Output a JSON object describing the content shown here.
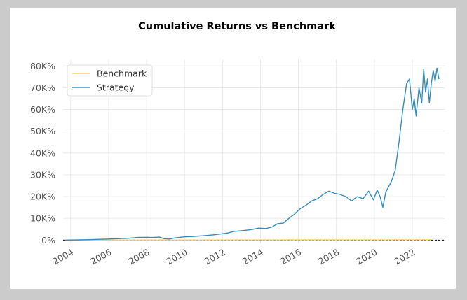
{
  "chart_data": {
    "type": "line",
    "title": "Cumulative Returns vs Benchmark",
    "xlabel": "",
    "ylabel": "",
    "x_ticks": [
      "2004",
      "2006",
      "2008",
      "2010",
      "2012",
      "2014",
      "2016",
      "2018",
      "2020",
      "2022"
    ],
    "y_ticks": [
      "0%",
      "10K%",
      "20K%",
      "30K%",
      "40K%",
      "50K%",
      "60K%",
      "70K%",
      "80K%"
    ],
    "x_range": [
      2003.6,
      2023.7
    ],
    "ylim": [
      -1500,
      83000
    ],
    "grid": true,
    "legend_position": "top-left",
    "reference_line": {
      "y": 0,
      "style": "dashed",
      "color": "#000000"
    },
    "series": [
      {
        "name": "Benchmark",
        "color": "#fcd06e",
        "points": [
          [
            2003.7,
            0
          ],
          [
            2008,
            30
          ],
          [
            2012,
            60
          ],
          [
            2016,
            100
          ],
          [
            2020,
            140
          ],
          [
            2023.0,
            180
          ]
        ]
      },
      {
        "name": "Strategy",
        "color": "#348dc1",
        "points": [
          [
            2003.7,
            0
          ],
          [
            2004.5,
            100
          ],
          [
            2005.0,
            200
          ],
          [
            2005.5,
            350
          ],
          [
            2006.0,
            500
          ],
          [
            2006.5,
            650
          ],
          [
            2007.0,
            800
          ],
          [
            2007.5,
            1200
          ],
          [
            2008.0,
            1300
          ],
          [
            2008.3,
            1200
          ],
          [
            2008.7,
            1350
          ],
          [
            2008.9,
            700
          ],
          [
            2009.2,
            500
          ],
          [
            2009.5,
            1000
          ],
          [
            2010.0,
            1500
          ],
          [
            2010.5,
            1700
          ],
          [
            2011.0,
            2000
          ],
          [
            2011.5,
            2400
          ],
          [
            2012.0,
            2900
          ],
          [
            2012.3,
            3300
          ],
          [
            2012.6,
            4000
          ],
          [
            2013.0,
            4300
          ],
          [
            2013.5,
            4800
          ],
          [
            2013.9,
            5500
          ],
          [
            2014.3,
            5300
          ],
          [
            2014.6,
            6000
          ],
          [
            2014.9,
            7500
          ],
          [
            2015.2,
            7800
          ],
          [
            2015.5,
            10000
          ],
          [
            2015.8,
            12000
          ],
          [
            2016.1,
            14500
          ],
          [
            2016.4,
            16000
          ],
          [
            2016.7,
            18000
          ],
          [
            2017.0,
            19000
          ],
          [
            2017.3,
            21000
          ],
          [
            2017.6,
            22500
          ],
          [
            2017.9,
            21500
          ],
          [
            2018.2,
            21000
          ],
          [
            2018.5,
            20000
          ],
          [
            2018.8,
            18000
          ],
          [
            2019.1,
            20000
          ],
          [
            2019.4,
            19000
          ],
          [
            2019.7,
            22500
          ],
          [
            2019.95,
            18500
          ],
          [
            2020.15,
            23000
          ],
          [
            2020.3,
            20000
          ],
          [
            2020.45,
            15000
          ],
          [
            2020.6,
            22000
          ],
          [
            2020.9,
            27000
          ],
          [
            2021.1,
            32000
          ],
          [
            2021.3,
            45000
          ],
          [
            2021.5,
            60000
          ],
          [
            2021.7,
            72000
          ],
          [
            2021.85,
            74000
          ],
          [
            2022.0,
            60000
          ],
          [
            2022.1,
            65000
          ],
          [
            2022.2,
            57000
          ],
          [
            2022.35,
            70000
          ],
          [
            2022.5,
            63000
          ],
          [
            2022.6,
            78500
          ],
          [
            2022.7,
            68000
          ],
          [
            2022.8,
            74000
          ],
          [
            2022.9,
            63000
          ],
          [
            2023.0,
            72000
          ],
          [
            2023.1,
            78000
          ],
          [
            2023.2,
            73000
          ],
          [
            2023.3,
            79000
          ],
          [
            2023.4,
            74000
          ]
        ]
      }
    ]
  }
}
